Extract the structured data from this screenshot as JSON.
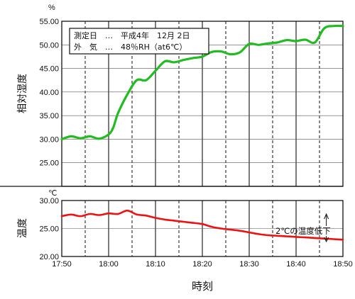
{
  "chart_data": [
    {
      "type": "line",
      "panel": "humidity",
      "unit": "%",
      "ylabel": "相対湿度",
      "ylim": [
        20,
        55
      ],
      "yticks": [
        "25.00",
        "30.00",
        "35.00",
        "40.00",
        "45.00",
        "50.00",
        "55.00"
      ],
      "grid": true,
      "legend_box": {
        "line1": "測定日　…　平成4年　12月 2日",
        "line2": "外　気　…　48％RH（at6℃）"
      },
      "series": [
        {
          "color": "#22bb22",
          "x": [
            "17:50",
            "17:52",
            "17:54",
            "17:56",
            "17:58",
            "18:00",
            "18:01",
            "18:02",
            "18:04",
            "18:06",
            "18:08",
            "18:10",
            "18:12",
            "18:14",
            "18:16",
            "18:18",
            "18:20",
            "18:22",
            "18:24",
            "18:26",
            "18:28",
            "18:30",
            "18:32",
            "18:34",
            "18:36",
            "18:38",
            "18:40",
            "18:42",
            "18:44",
            "18:46",
            "18:48",
            "18:50"
          ],
          "y": [
            30.0,
            30.6,
            30.2,
            30.6,
            30.1,
            31.0,
            32.5,
            35.5,
            39.5,
            42.5,
            42.5,
            44.5,
            46.5,
            46.3,
            46.8,
            47.2,
            47.5,
            48.5,
            48.6,
            48.0,
            48.4,
            50.2,
            50.0,
            50.3,
            50.5,
            51.0,
            50.8,
            51.1,
            50.5,
            53.5,
            54.0,
            54.0
          ]
        }
      ]
    },
    {
      "type": "line",
      "panel": "temperature",
      "unit": "℃",
      "ylabel": "温度",
      "ylim": [
        20,
        30
      ],
      "yticks": [
        "20.00",
        "25.00",
        "30.00"
      ],
      "xlabel": "時刻",
      "xticks": [
        "17:50",
        "18:00",
        "18:10",
        "18:20",
        "18:30",
        "18:40",
        "18:50"
      ],
      "grid": true,
      "annotation": "2℃の温度低下",
      "series": [
        {
          "color": "#ee1111",
          "x": [
            "17:50",
            "17:52",
            "17:54",
            "17:56",
            "17:58",
            "18:00",
            "18:02",
            "18:04",
            "18:06",
            "18:08",
            "18:10",
            "18:12",
            "18:14",
            "18:16",
            "18:18",
            "18:20",
            "18:22",
            "18:24",
            "18:26",
            "18:28",
            "18:30",
            "18:32",
            "18:34",
            "18:36",
            "18:38",
            "18:40",
            "18:42",
            "18:44",
            "18:46",
            "18:48",
            "18:50"
          ],
          "y": [
            27.2,
            27.5,
            27.2,
            27.6,
            27.4,
            27.7,
            27.6,
            28.2,
            27.5,
            27.3,
            26.9,
            26.6,
            26.4,
            26.2,
            26.0,
            25.8,
            25.3,
            25.0,
            24.8,
            24.6,
            24.3,
            24.0,
            23.8,
            23.7,
            23.6,
            23.5,
            23.4,
            23.3,
            23.2,
            23.1,
            23.0
          ]
        }
      ]
    }
  ]
}
